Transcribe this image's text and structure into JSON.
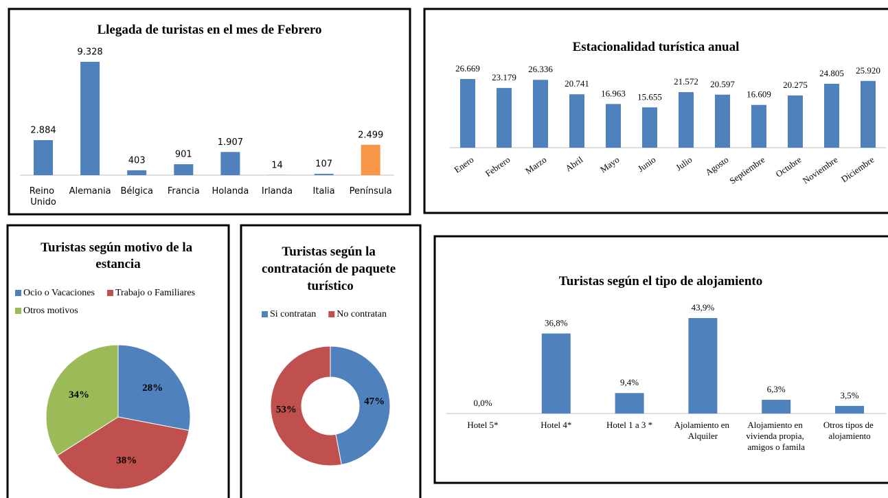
{
  "chart_data": [
    {
      "type": "bar",
      "title": "Llegada de turistas en el mes de Febrero",
      "categories": [
        "Reino Unido",
        "Alemania",
        "Bélgica",
        "Francia",
        "Holanda",
        "Irlanda",
        "Italia",
        "Península"
      ],
      "values": [
        2884,
        9328,
        403,
        901,
        1907,
        14,
        107,
        2499
      ],
      "value_labels": [
        "2.884",
        "9.328",
        "403",
        "901",
        "1.907",
        "14",
        "107",
        "2.499"
      ],
      "colors": [
        "#4f81bd",
        "#4f81bd",
        "#4f81bd",
        "#4f81bd",
        "#4f81bd",
        "#4f81bd",
        "#4f81bd",
        "#f79646"
      ]
    },
    {
      "type": "bar",
      "title": "Estacionalidad turística anual",
      "categories": [
        "Enero",
        "Febrero",
        "Marzo",
        "Abril",
        "Mayo",
        "Junio",
        "Julio",
        "Agosto",
        "Septiembre",
        "Octubre",
        "Noviembre",
        "Diciembre"
      ],
      "values": [
        26669,
        23179,
        26336,
        20741,
        16963,
        15655,
        21572,
        20597,
        16609,
        20275,
        24805,
        25920
      ],
      "value_labels": [
        "26.669",
        "23.179",
        "26.336",
        "20.741",
        "16.963",
        "15.655",
        "21.572",
        "20.597",
        "16.609",
        "20.275",
        "24.805",
        "25.920"
      ],
      "color": "#4f81bd"
    },
    {
      "type": "pie",
      "title": "Turistas según motivo de la estancia",
      "categories": [
        "Ocio o Vacaciones",
        "Trabajo o Familiares",
        "Otros motivos"
      ],
      "values": [
        28,
        38,
        34
      ],
      "value_labels": [
        "28%",
        "38%",
        "34%"
      ],
      "colors": [
        "#4f81bd",
        "#c0504d",
        "#9bbb59"
      ]
    },
    {
      "type": "donut",
      "title": "Turistas según la contratación de paquete turístico",
      "categories": [
        "Si contratan",
        "No contratan"
      ],
      "values": [
        47,
        53
      ],
      "value_labels": [
        "47%",
        "53%"
      ],
      "colors": [
        "#4f81bd",
        "#c0504d"
      ]
    },
    {
      "type": "bar",
      "title": "Turistas según el tipo de alojamiento",
      "categories": [
        "Hotel 5*",
        "Hotel 4*",
        "Hotel 1 a 3 *",
        "Ajolamiento en Alquiler",
        "Alojamiento en vivienda propia, amigos o famila",
        "Otros tipos de alojamiento"
      ],
      "values": [
        0,
        36.8,
        9.4,
        43.9,
        6.3,
        3.5
      ],
      "value_labels": [
        "0,0%",
        "36,8%",
        "9,4%",
        "43,9%",
        "6,3%",
        "3,5%"
      ],
      "color": "#4f81bd"
    }
  ]
}
